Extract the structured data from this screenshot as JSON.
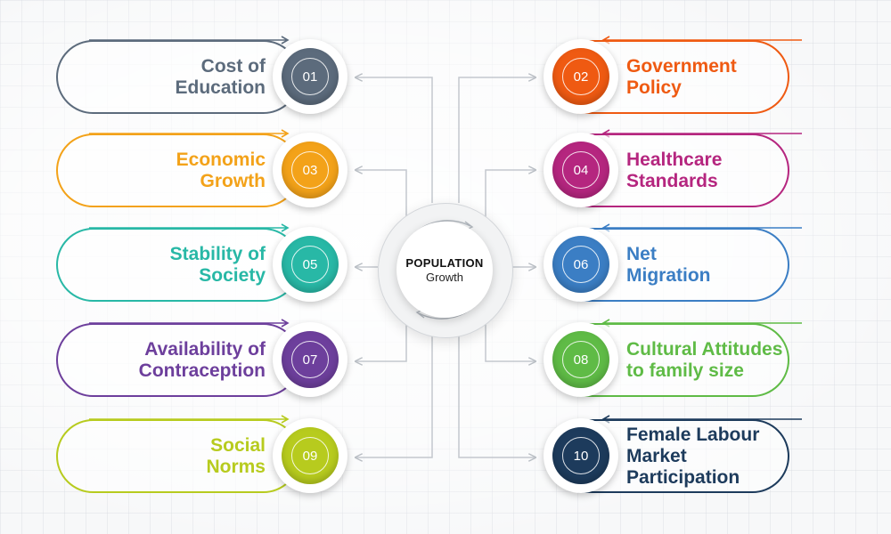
{
  "center": {
    "title": "POPULATION",
    "subtitle": "Growth"
  },
  "factors": [
    {
      "number": "01",
      "lines": [
        "Cost of",
        "Education"
      ],
      "side": "left",
      "color": "#5c6b7c",
      "icon": "number-badge"
    },
    {
      "number": "02",
      "lines": [
        "Government",
        "Policy"
      ],
      "side": "right",
      "color": "#ef5a12",
      "icon": "number-badge"
    },
    {
      "number": "03",
      "lines": [
        "Economic",
        "Growth"
      ],
      "side": "left",
      "color": "#f3a219",
      "icon": "number-badge"
    },
    {
      "number": "04",
      "lines": [
        "Healthcare",
        "Standards"
      ],
      "side": "right",
      "color": "#b5267f",
      "icon": "number-badge"
    },
    {
      "number": "05",
      "lines": [
        "Stability of",
        "Society"
      ],
      "side": "left",
      "color": "#28b8a6",
      "icon": "number-badge"
    },
    {
      "number": "06",
      "lines": [
        "Net",
        "Migration"
      ],
      "side": "right",
      "color": "#3b7ec4",
      "icon": "number-badge"
    },
    {
      "number": "07",
      "lines": [
        "Availability of",
        "Contraception"
      ],
      "side": "left",
      "color": "#6d3f9c",
      "icon": "number-badge"
    },
    {
      "number": "08",
      "lines": [
        "Cultural Attitudes",
        "to family size"
      ],
      "side": "right",
      "color": "#5fbb46",
      "icon": "number-badge"
    },
    {
      "number": "09",
      "lines": [
        "Social",
        "Norms"
      ],
      "side": "left",
      "color": "#b7cb1e",
      "icon": "number-badge"
    },
    {
      "number": "10",
      "lines": [
        "Female Labour",
        "Market",
        "Participation"
      ],
      "side": "right",
      "color": "#1d3b5c",
      "icon": "number-badge"
    }
  ]
}
